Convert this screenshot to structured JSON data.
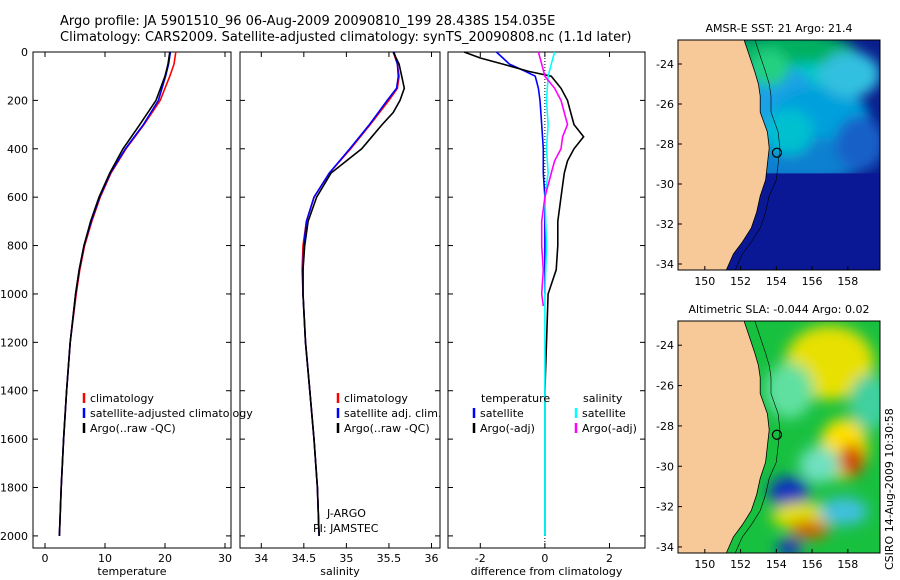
{
  "header": {
    "line1": "Argo profile: JA 5901510_96 06-Aug-2009 20090810_199 28.438S 154.035E",
    "line2": "Climatology: CARS2009. Satellite-adjusted climatology: synTS_20090808.nc (1.1d later)"
  },
  "footer_stamp": "CSIRO 14-Aug-2009 10:30:58",
  "colors": {
    "climatology": "#ff0000",
    "satellite": "#0000ff",
    "argo": "#000000",
    "sal_sat": "#00ffff",
    "sal_argo": "#ff00ff",
    "land": "#f7c898"
  },
  "chart_data": [
    {
      "type": "line",
      "xlabel": "temperature",
      "ylabel": "",
      "xlim": [
        -2,
        31
      ],
      "ylim": [
        0,
        2050
      ],
      "y_reversed": true,
      "x_ticks": [
        0,
        10,
        20,
        30
      ],
      "y_ticks": [
        0,
        200,
        400,
        600,
        800,
        1000,
        1200,
        1400,
        1600,
        1800,
        2000
      ],
      "legend": {
        "position": "bottom-right",
        "entries": [
          "climatology",
          "satellite-adjusted climatology",
          "Argo(..raw -QC)"
        ]
      },
      "series": [
        {
          "name": "climatology",
          "color": "#ff0000",
          "depth": [
            0,
            50,
            100,
            200,
            300,
            400,
            500,
            600,
            700,
            800,
            900,
            1000,
            1200,
            1400,
            1600,
            1800,
            2000
          ],
          "values": [
            21.8,
            21.5,
            20.8,
            19.2,
            16.5,
            13.5,
            11.0,
            9.2,
            7.8,
            6.6,
            5.8,
            5.2,
            4.2,
            3.6,
            3.1,
            2.7,
            2.4
          ]
        },
        {
          "name": "satellite-adjusted climatology",
          "color": "#0000ff",
          "depth": [
            0,
            50,
            100,
            200,
            300,
            400,
            500,
            600,
            700,
            800,
            900,
            1000,
            1200,
            1400,
            1600,
            1800,
            2000
          ],
          "values": [
            20.9,
            20.6,
            20.1,
            18.9,
            16.4,
            13.4,
            10.9,
            9.1,
            7.7,
            6.5,
            5.7,
            5.1,
            4.2,
            3.6,
            3.1,
            2.7,
            2.4
          ]
        },
        {
          "name": "Argo(..raw -QC)",
          "color": "#000000",
          "depth": [
            0,
            50,
            100,
            200,
            300,
            400,
            500,
            600,
            700,
            800,
            900,
            1000,
            1200,
            1400,
            1600,
            1800,
            2000
          ],
          "values": [
            20.8,
            20.5,
            20.0,
            18.5,
            15.8,
            13.0,
            10.8,
            9.0,
            7.6,
            6.5,
            5.7,
            5.1,
            4.2,
            3.6,
            3.1,
            2.7,
            2.4
          ]
        }
      ]
    },
    {
      "type": "line",
      "xlabel": "salinity",
      "ylabel": "",
      "xlim": [
        33.75,
        36.1
      ],
      "ylim": [
        0,
        2050
      ],
      "y_reversed": true,
      "x_ticks": [
        34,
        34.5,
        35,
        35.5,
        36
      ],
      "legend": {
        "position": "bottom-right",
        "entries": [
          "climatology",
          "satellite adj. clim.",
          "Argo(..raw -QC)"
        ]
      },
      "annotations": [
        "J-ARGO",
        "PI: JAMSTEC"
      ],
      "series": [
        {
          "name": "climatology",
          "color": "#ff0000",
          "depth": [
            0,
            50,
            100,
            150,
            200,
            300,
            400,
            500,
            600,
            700,
            800,
            900,
            1000,
            1200,
            1400,
            1600,
            1800,
            2000
          ],
          "values": [
            35.55,
            35.6,
            35.62,
            35.6,
            35.5,
            35.28,
            35.05,
            34.8,
            34.62,
            34.53,
            34.49,
            34.48,
            34.49,
            34.52,
            34.57,
            34.62,
            34.66,
            34.68
          ]
        },
        {
          "name": "satellite adj. clim.",
          "color": "#0000ff",
          "depth": [
            0,
            50,
            100,
            150,
            200,
            300,
            400,
            500,
            600,
            700,
            800,
            900,
            1000,
            1200,
            1400,
            1600,
            1800,
            2000
          ],
          "values": [
            35.56,
            35.6,
            35.61,
            35.59,
            35.48,
            35.27,
            35.04,
            34.8,
            34.62,
            34.53,
            34.5,
            34.49,
            34.49,
            34.52,
            34.57,
            34.62,
            34.66,
            34.68
          ]
        },
        {
          "name": "Argo(..raw -QC)",
          "color": "#000000",
          "depth": [
            0,
            50,
            100,
            150,
            200,
            250,
            300,
            350,
            400,
            450,
            500,
            600,
            700,
            800,
            900,
            1000,
            1200,
            1400,
            1600,
            1800,
            2000
          ],
          "values": [
            35.55,
            35.62,
            35.65,
            35.68,
            35.63,
            35.55,
            35.42,
            35.3,
            35.18,
            35.0,
            34.82,
            34.65,
            34.55,
            34.51,
            34.49,
            34.49,
            34.52,
            34.57,
            34.62,
            34.66,
            34.68
          ]
        }
      ]
    },
    {
      "type": "line",
      "xlabel": "difference from climatology",
      "ylabel": "",
      "xlim": [
        -3,
        3.1
      ],
      "ylim": [
        0,
        2050
      ],
      "y_reversed": true,
      "x_ticks": [
        -2,
        0,
        2
      ],
      "legend": {
        "position": "bottom",
        "entries": [
          "temperature",
          "satellite",
          "Argo(-adj)",
          "salinity",
          "satellite",
          "Argo(-adj)"
        ]
      },
      "series": [
        {
          "name": "temperature satellite",
          "color": "#0000ff",
          "depth": [
            0,
            25,
            50,
            80,
            100,
            150,
            200,
            300,
            400,
            500,
            600,
            800,
            1000
          ],
          "values": [
            -1.5,
            -1.3,
            -1.1,
            -0.6,
            -0.3,
            -0.2,
            -0.15,
            -0.1,
            -0.05,
            -0.05,
            0,
            0,
            0
          ]
        },
        {
          "name": "temperature Argo(-adj)",
          "color": "#000000",
          "depth": [
            0,
            25,
            50,
            80,
            100,
            150,
            200,
            250,
            300,
            350,
            400,
            450,
            500,
            600,
            700,
            800,
            900,
            1000,
            1200,
            1400,
            1600,
            1800,
            2000
          ],
          "values": [
            -2.5,
            -2.0,
            -1.3,
            -0.5,
            0.2,
            0.5,
            0.7,
            0.8,
            0.9,
            1.2,
            0.9,
            0.7,
            0.6,
            0.5,
            0.4,
            0.4,
            0.35,
            0.1,
            0.05,
            0.0,
            0.0,
            0.0,
            0.0
          ]
        },
        {
          "name": "salinity satellite",
          "color": "#00ffff",
          "depth": [
            0,
            50,
            100,
            200,
            300,
            400,
            500,
            600,
            800,
            1000,
            1200,
            1400,
            1600,
            1800,
            2000
          ],
          "values": [
            0.3,
            0.2,
            0.1,
            0.05,
            0.1,
            0.05,
            0.1,
            0.0,
            0.05,
            0.0,
            0.0,
            0.0,
            0.0,
            0.0,
            0.0
          ]
        },
        {
          "name": "salinity Argo(-adj)",
          "color": "#ff00ff",
          "depth": [
            0,
            50,
            100,
            150,
            200,
            250,
            300,
            350,
            400,
            450,
            500,
            600,
            700,
            800,
            900,
            1000,
            1050
          ],
          "values": [
            -0.2,
            -0.1,
            0.0,
            0.3,
            0.5,
            0.6,
            0.7,
            0.55,
            0.5,
            0.3,
            0.2,
            0.0,
            -0.1,
            -0.1,
            -0.05,
            -0.1,
            -0.05
          ]
        }
      ]
    },
    {
      "type": "heatmap",
      "title": "AMSR-E SST: 21 Argo: 21.4",
      "xlim": [
        148.5,
        159.8
      ],
      "ylim": [
        -34.3,
        -22.8
      ],
      "x_ticks": [
        150,
        152,
        154,
        156,
        158
      ],
      "y_ticks": [
        -24,
        -26,
        -28,
        -30,
        -32,
        -34
      ],
      "marker": {
        "lon": 154.035,
        "lat": -28.438
      }
    },
    {
      "type": "heatmap",
      "title": "Altimetric SLA: -0.044 Argo: 0.02",
      "xlim": [
        148.5,
        159.8
      ],
      "ylim": [
        -34.3,
        -22.8
      ],
      "x_ticks": [
        150,
        152,
        154,
        156,
        158
      ],
      "y_ticks": [
        -24,
        -26,
        -28,
        -30,
        -32,
        -34
      ],
      "marker": {
        "lon": 154.035,
        "lat": -28.438
      }
    }
  ]
}
